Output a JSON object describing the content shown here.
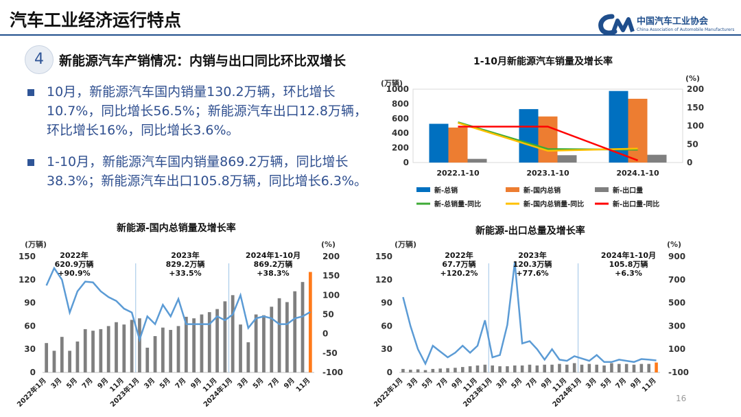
{
  "header": {
    "title": "汽车工业经济运行特点",
    "logo_cn": "中国汽车工业协会",
    "logo_en": "China Association of Automobile Manufacturers"
  },
  "section": {
    "number": "4",
    "heading": "新能源汽车产销情况：内销与出口同比环比双增长"
  },
  "bullets": [
    "10月，新能源汽车国内销量130.2万辆，环比增长10.7%，同比增长56.5%；新能源汽车出口12.8万辆，环比增长16%，同比增长3.6%。",
    "1-10月，新能源汽车国内销量869.2万辆，同比增长38.3%；新能源汽车出口105.8万辆，同比增长6.3%。"
  ],
  "page_number": "16",
  "colors": {
    "blue": "#0070c0",
    "orange": "#ed7d31",
    "gray": "#7f7f7f",
    "green": "#3daa35",
    "yellow": "#ffc000",
    "red": "#ff0000",
    "line_blue": "#5b9bd5",
    "accent_orange": "#ff7a1a"
  },
  "chart_data": [
    {
      "type": "bar",
      "title": "1-10月新能源汽车销量及增长率",
      "y_unit_left": "(万辆)",
      "y_unit_right": "(%)",
      "categories": [
        "2022.1-10",
        "2023.1-10",
        "2024.1-10"
      ],
      "ylim_left": [
        0,
        1000
      ],
      "yticks_left": [
        0,
        200,
        400,
        600,
        800,
        1000
      ],
      "ylim_right": [
        0,
        200
      ],
      "yticks_right": [
        0,
        50,
        100,
        150,
        200
      ],
      "series": [
        {
          "name": "新-总销",
          "kind": "bar",
          "axis": "left",
          "color": "#0070c0",
          "values": [
            528,
            728,
            975
          ]
        },
        {
          "name": "新-国内总销",
          "kind": "bar",
          "axis": "left",
          "color": "#ed7d31",
          "values": [
            477,
            628,
            869
          ]
        },
        {
          "name": "新-出口量",
          "kind": "bar",
          "axis": "left",
          "color": "#7f7f7f",
          "values": [
            50,
            100,
            106
          ]
        },
        {
          "name": "新-总销量-同比",
          "kind": "line",
          "axis": "right",
          "color": "#3daa35",
          "values": [
            110,
            37,
            35
          ]
        },
        {
          "name": "新-国内总销量-同比",
          "kind": "line",
          "axis": "right",
          "color": "#ffc000",
          "values": [
            108,
            32,
            38
          ]
        },
        {
          "name": "新-出口量-同比",
          "kind": "line",
          "axis": "right",
          "color": "#ff0000",
          "values": [
            98,
            98,
            6
          ]
        }
      ],
      "legend": "bottom"
    },
    {
      "type": "bar",
      "title": "新能源-国内总销量及增长率",
      "y_unit_left": "(万辆)",
      "y_unit_right": "(%)",
      "ylim_left": [
        0,
        150
      ],
      "yticks_left": [
        0,
        30,
        60,
        90,
        120,
        150
      ],
      "ylim_right": [
        -100,
        200
      ],
      "yticks_right": [
        -100,
        -50,
        0,
        50,
        100,
        150,
        200
      ],
      "x_labels": [
        "2022年1月",
        "3月",
        "5月",
        "7月",
        "9月",
        "11月",
        "2023年1月",
        "3月",
        "5月",
        "7月",
        "9月",
        "11月",
        "2024年1月",
        "3月",
        "5月",
        "7月",
        "9月",
        "11月"
      ],
      "bar_values": [
        38,
        28,
        46,
        28,
        40,
        56,
        54,
        56,
        60,
        65,
        62,
        68,
        70,
        32,
        47,
        58,
        55,
        60,
        72,
        70,
        75,
        78,
        82,
        92,
        100,
        62,
        39,
        75,
        74,
        85,
        96,
        91,
        105,
        117,
        130
      ],
      "line_values": [
        125,
        170,
        140,
        55,
        110,
        135,
        133,
        110,
        95,
        85,
        65,
        55,
        -15,
        45,
        25,
        75,
        45,
        90,
        25,
        25,
        25,
        25,
        45,
        35,
        50,
        100,
        15,
        40,
        45,
        40,
        25,
        25,
        40,
        45,
        56.5
      ],
      "annotations": [
        {
          "lines": [
            "2022年",
            "620.9万辆",
            "+90.9%"
          ]
        },
        {
          "lines": [
            "2023年",
            "829.2万辆",
            "+33.5%"
          ]
        },
        {
          "lines": [
            "2024年1-10月",
            "869.2万辆",
            "+38.3%"
          ]
        }
      ]
    },
    {
      "type": "bar",
      "title": "新能源-出口总量及增长率",
      "y_unit_left": "(万辆)",
      "y_unit_right": "(%)",
      "ylim_left": [
        0,
        150
      ],
      "yticks_left": [
        0,
        30,
        60,
        90,
        120,
        150
      ],
      "ylim_right": [
        -100,
        900
      ],
      "yticks_right": [
        -100,
        100,
        300,
        500,
        700,
        900
      ],
      "x_labels": [
        "2022年1月",
        "3月",
        "5月",
        "7月",
        "9月",
        "11月",
        "2023年1月",
        "3月",
        "5月",
        "7月",
        "9月",
        "11月",
        "2024年1月",
        "3月",
        "5月",
        "7月",
        "9月",
        "11月"
      ],
      "bar_values": [
        4.5,
        3.5,
        4,
        3,
        4.5,
        5,
        5.5,
        6,
        7,
        8,
        9,
        10,
        9,
        8,
        8,
        9,
        9,
        10,
        9,
        10,
        10,
        11,
        10,
        12,
        10,
        11,
        10,
        9,
        12,
        11,
        11,
        10,
        11,
        11,
        12.8
      ],
      "line_values": [
        550,
        300,
        100,
        -25,
        130,
        80,
        30,
        70,
        130,
        70,
        130,
        350,
        30,
        50,
        310,
        850,
        150,
        170,
        100,
        10,
        100,
        10,
        0,
        40,
        20,
        0,
        50,
        -10,
        -10,
        10,
        0,
        -10,
        15,
        10,
        3.6
      ],
      "annotations": [
        {
          "lines": [
            "2022年",
            "67.7万辆",
            "+120.2%"
          ]
        },
        {
          "lines": [
            "2023年",
            "120.3万辆",
            "+77.6%"
          ]
        },
        {
          "lines": [
            "2024年1-10月",
            "105.8万辆",
            "+6.3%"
          ]
        }
      ]
    }
  ]
}
